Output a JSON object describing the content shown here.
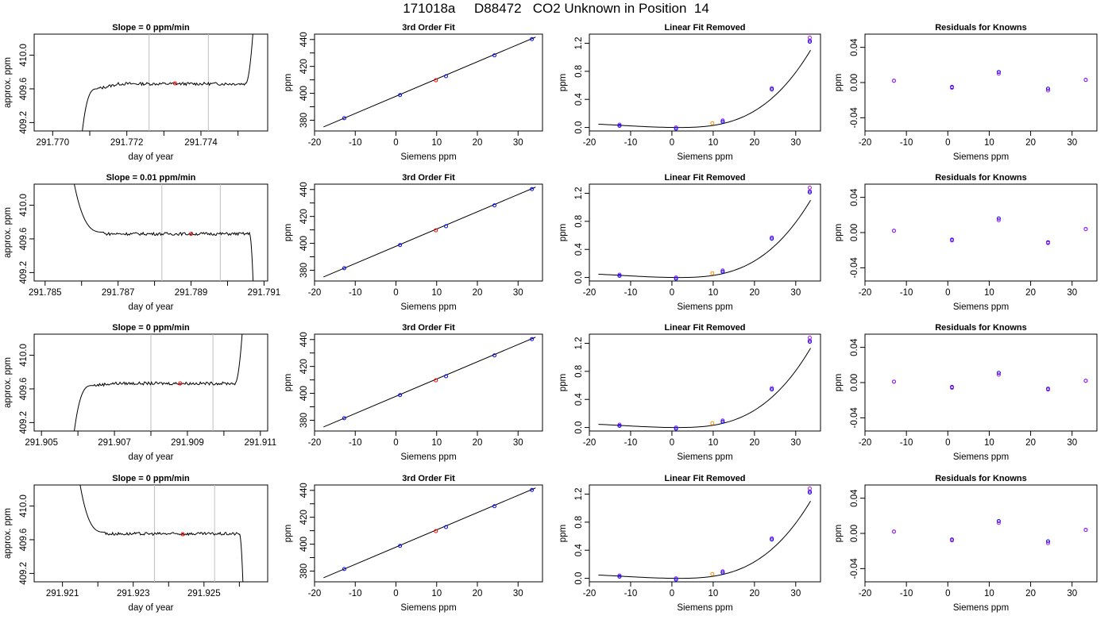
{
  "header": {
    "title": "171018a     D88472   CO2 Unknown in Position  14"
  },
  "colors": {
    "trace": "#000000",
    "window_line": "#bebebe",
    "point_red": "#ff0000",
    "point_blue": "#0000ff",
    "point_purple": "#a020f0",
    "point_orange": "#ff8c00",
    "curve": "#000000"
  },
  "rows": [
    {
      "time_panel": {
        "title": "Slope =  0  ppm/min",
        "xlabel": "day of year",
        "ylabel": "approx. ppm",
        "xlim": [
          291.7695,
          291.7758
        ],
        "ylim": [
          409.1,
          410.25
        ],
        "xticks": [
          291.77,
          291.771,
          291.772,
          291.773,
          291.774,
          291.775
        ],
        "xtick_labels": [
          "291.770",
          "",
          "291.772",
          "",
          "291.774",
          ""
        ],
        "yticks": [
          409.2,
          409.6,
          410.0
        ],
        "ytick_labels": [
          "409.2",
          "409.6",
          "410.0"
        ],
        "window": [
          291.7726,
          291.7742
        ],
        "mean_point": [
          291.7733,
          409.665
        ],
        "trace_start": [
          291.7708,
          409.1
        ],
        "trace_rise_end": [
          291.7712,
          409.6
        ],
        "plateau_level": 409.66,
        "plateau_end": 291.7752,
        "trace_end": [
          291.7754,
          410.25
        ],
        "shape": "rise"
      },
      "fit": {
        "title": "3rd Order Fit",
        "xlabel": "Siemens ppm",
        "ylabel": "ppm"
      },
      "linear": {
        "title": "Linear Fit Removed",
        "xlabel": "Siemens ppm",
        "ylabel": "ppm",
        "curve": {
          "x0": 1.5,
          "a": 0.00088,
          "c": -0.0002
        },
        "knowns": [
          [
            -12.7,
            0.04
          ],
          [
            1.0,
            0.0
          ],
          [
            12.3,
            0.1
          ],
          [
            24.2,
            0.56
          ],
          [
            33.4,
            1.24
          ]
        ],
        "unknown": [
          9.8,
          0.06
        ],
        "ref_point": [
          33.4,
          1.28
        ]
      },
      "resid": {
        "title": "Residuals for Knowns",
        "xlabel": "Siemens ppm",
        "ylabel": "ppm",
        "points": [
          [
            -13,
            0.002,
            0.002
          ],
          [
            1.0,
            -0.005,
            -0.006
          ],
          [
            12.3,
            0.012,
            0.01
          ],
          [
            24.2,
            -0.007,
            -0.009
          ],
          [
            33.3,
            0.003,
            0.003
          ]
        ]
      }
    },
    {
      "time_panel": {
        "title": "Slope =  0.01  ppm/min",
        "xlabel": "day of year",
        "ylabel": "approx. ppm",
        "xlim": [
          291.7847,
          291.7911
        ],
        "ylim": [
          409.1,
          410.25
        ],
        "xticks": [
          291.785,
          291.786,
          291.787,
          291.788,
          291.789,
          291.79,
          291.791
        ],
        "xtick_labels": [
          "291.785",
          "",
          "291.787",
          "",
          "291.789",
          "",
          "291.791"
        ],
        "yticks": [
          409.2,
          409.6,
          410.0
        ],
        "ytick_labels": [
          "409.2",
          "409.6",
          "410.0"
        ],
        "window": [
          291.7882,
          291.7898
        ],
        "mean_point": [
          291.789,
          409.66
        ],
        "trace_start": [
          291.7858,
          410.25
        ],
        "trace_rise_end": [
          291.7866,
          409.68
        ],
        "plateau_level": 409.66,
        "plateau_end": 291.7906,
        "trace_end": [
          291.7907,
          409.1
        ],
        "shape": "fall"
      },
      "fit": {
        "title": "3rd Order Fit",
        "xlabel": "Siemens ppm",
        "ylabel": "ppm"
      },
      "linear": {
        "title": "Linear Fit Removed",
        "xlabel": "Siemens ppm",
        "ylabel": "ppm",
        "curve": {
          "x0": 1.5,
          "a": 0.00088,
          "c": -0.0002
        },
        "knowns": [
          [
            -12.7,
            0.04
          ],
          [
            1.0,
            0.0
          ],
          [
            12.3,
            0.1
          ],
          [
            24.2,
            0.57
          ],
          [
            33.4,
            1.23
          ]
        ],
        "unknown": [
          9.8,
          0.06
        ],
        "ref_point": [
          33.4,
          1.28
        ]
      },
      "resid": {
        "title": "Residuals for Knowns",
        "xlabel": "Siemens ppm",
        "ylabel": "ppm",
        "points": [
          [
            -13,
            0.002,
            0.002
          ],
          [
            1.0,
            -0.008,
            -0.009
          ],
          [
            12.3,
            0.016,
            0.014
          ],
          [
            24.2,
            -0.011,
            -0.012
          ],
          [
            33.3,
            0.004,
            0.004
          ]
        ]
      }
    },
    {
      "time_panel": {
        "title": "Slope =  0  ppm/min",
        "xlabel": "day of year",
        "ylabel": "approx. ppm",
        "xlim": [
          291.9048,
          291.9112
        ],
        "ylim": [
          409.1,
          410.25
        ],
        "xticks": [
          291.905,
          291.906,
          291.907,
          291.908,
          291.909,
          291.91,
          291.911
        ],
        "xtick_labels": [
          "291.905",
          "",
          "291.907",
          "",
          "291.909",
          "",
          "291.911"
        ],
        "yticks": [
          409.2,
          409.6,
          410.0
        ],
        "ytick_labels": [
          "409.2",
          "409.6",
          "410.0"
        ],
        "window": [
          291.908,
          291.9097
        ],
        "mean_point": [
          291.9088,
          409.665
        ],
        "trace_start": [
          291.9059,
          409.1
        ],
        "trace_rise_end": [
          291.9064,
          409.64
        ],
        "plateau_level": 409.665,
        "plateau_end": 291.9103,
        "trace_end": [
          291.9105,
          410.25
        ],
        "shape": "rise"
      },
      "fit": {
        "title": "3rd Order Fit",
        "xlabel": "Siemens ppm",
        "ylabel": "ppm"
      },
      "linear": {
        "title": "Linear Fit Removed",
        "xlabel": "Siemens ppm",
        "ylabel": "ppm",
        "curve": {
          "x0": 1.2,
          "a": 0.00088,
          "c": -0.0003
        },
        "knowns": [
          [
            -12.7,
            0.04
          ],
          [
            1.0,
            0.0
          ],
          [
            12.3,
            0.1
          ],
          [
            24.2,
            0.56
          ],
          [
            33.4,
            1.24
          ]
        ],
        "unknown": [
          9.8,
          0.06
        ],
        "ref_point": [
          33.4,
          1.28
        ]
      },
      "resid": {
        "title": "Residuals for Knowns",
        "xlabel": "Siemens ppm",
        "ylabel": "ppm",
        "points": [
          [
            -13,
            0.001,
            0.001
          ],
          [
            1.0,
            -0.005,
            -0.006
          ],
          [
            12.3,
            0.011,
            0.009
          ],
          [
            24.2,
            -0.007,
            -0.008
          ],
          [
            33.3,
            0.002,
            0.002
          ]
        ]
      }
    },
    {
      "time_panel": {
        "title": "Slope =  0  ppm/min",
        "xlabel": "day of year",
        "ylabel": "approx. ppm",
        "xlim": [
          291.9202,
          291.9268
        ],
        "ylim": [
          409.1,
          410.25
        ],
        "xticks": [
          291.921,
          291.922,
          291.923,
          291.924,
          291.925,
          291.926
        ],
        "xtick_labels": [
          "291.921",
          "",
          "291.923",
          "",
          "291.925",
          ""
        ],
        "yticks": [
          409.2,
          409.6,
          410.0
        ],
        "ytick_labels": [
          "409.2",
          "409.6",
          "410.0"
        ],
        "window": [
          291.9236,
          291.9253
        ],
        "mean_point": [
          291.9244,
          409.665
        ],
        "trace_start": [
          291.9215,
          410.25
        ],
        "trace_rise_end": [
          291.9222,
          409.69
        ],
        "plateau_level": 409.67,
        "plateau_end": 291.926,
        "trace_end": [
          291.9261,
          409.1
        ],
        "shape": "fall"
      },
      "fit": {
        "title": "3rd Order Fit",
        "xlabel": "Siemens ppm",
        "ylabel": "ppm"
      },
      "linear": {
        "title": "Linear Fit Removed",
        "xlabel": "Siemens ppm",
        "ylabel": "ppm",
        "curve": {
          "x0": 1.5,
          "a": 0.00088,
          "c": -0.0002
        },
        "knowns": [
          [
            -12.7,
            0.04
          ],
          [
            1.0,
            0.0
          ],
          [
            12.3,
            0.1
          ],
          [
            24.2,
            0.57
          ],
          [
            33.4,
            1.24
          ]
        ],
        "unknown": [
          9.8,
          0.06
        ],
        "ref_point": [
          33.4,
          1.28
        ]
      },
      "resid": {
        "title": "Residuals for Knowns",
        "xlabel": "Siemens ppm",
        "ylabel": "ppm",
        "points": [
          [
            -13,
            0.002,
            0.002
          ],
          [
            1.0,
            -0.007,
            -0.008
          ],
          [
            12.3,
            0.014,
            0.012
          ],
          [
            24.2,
            -0.009,
            -0.011
          ],
          [
            33.3,
            0.004,
            0.004
          ]
        ]
      }
    }
  ],
  "shared": {
    "fit_xlim": [
      -20,
      36
    ],
    "fit_ylim": [
      372,
      444
    ],
    "fit_xticks": [
      -20,
      -10,
      0,
      10,
      20,
      30
    ],
    "fit_xtick_labels": [
      "-20",
      "-10",
      "0",
      "10",
      "20",
      "30"
    ],
    "fit_yticks": [
      380,
      400,
      420,
      440
    ],
    "fit_yticks_minor": [
      390,
      410,
      430
    ],
    "fit_ytick_labels": [
      "380",
      "400",
      "420",
      "440"
    ],
    "fit_knowns": [
      [
        -12.7,
        381.5
      ],
      [
        1.0,
        398.7
      ],
      [
        12.3,
        412.7
      ],
      [
        24.2,
        428.2
      ],
      [
        33.4,
        440.3
      ]
    ],
    "fit_unknown": [
      9.8,
      409.7
    ],
    "fit_line": [
      [
        -17.8,
        375.0
      ],
      [
        34.3,
        441.8
      ]
    ],
    "lin_xlim": [
      -20,
      36
    ],
    "lin_ylim": [
      -0.05,
      1.33
    ],
    "lin_xticks": [
      -20,
      -10,
      0,
      10,
      20,
      30
    ],
    "lin_xtick_labels": [
      "-20",
      "-10",
      "0",
      "10",
      "20",
      "30"
    ],
    "lin_yticks": [
      0.0,
      0.4,
      0.8,
      1.2
    ],
    "lin_ytick_labels": [
      "0.0",
      "0.4",
      "0.8",
      "1.2"
    ],
    "lin_curve_range": [
      -17.8,
      33.6
    ],
    "res_xlim": [
      -20,
      36
    ],
    "res_ylim": [
      -0.055,
      0.055
    ],
    "res_xticks": [
      -20,
      -10,
      0,
      10,
      20,
      30
    ],
    "res_xtick_labels": [
      "-20",
      "-10",
      "0",
      "10",
      "20",
      "30"
    ],
    "res_yticks": [
      -0.04,
      0.0,
      0.04
    ],
    "res_ytick_labels": [
      "-0.04",
      "0.00",
      "0.04"
    ]
  },
  "chart_data": [
    {
      "type": "line",
      "title": "Slope =  0  ppm/min",
      "xlabel": "day of year",
      "ylabel": "approx. ppm",
      "xlim": [
        291.7695,
        291.7758
      ],
      "ylim": [
        409.1,
        410.25
      ],
      "series": [
        {
          "x": [
            291.7708,
            291.7712,
            291.7726,
            291.7742,
            291.7752,
            291.7754
          ],
          "values": [
            409.1,
            409.6,
            409.66,
            409.67,
            409.7,
            410.25
          ]
        }
      ]
    },
    {
      "type": "scatter",
      "title": "3rd Order Fit",
      "xlabel": "Siemens ppm",
      "ylabel": "ppm",
      "xlim": [
        -20,
        36
      ],
      "ylim": [
        372,
        444
      ],
      "series": [
        {
          "x": [
            -12.7,
            1.0,
            12.3,
            24.2,
            33.4
          ],
          "values": [
            381.5,
            398.7,
            412.7,
            428.2,
            440.3
          ]
        },
        {
          "x": [
            9.8
          ],
          "values": [
            409.7
          ]
        }
      ]
    },
    {
      "type": "scatter",
      "title": "Linear Fit Removed",
      "xlabel": "Siemens ppm",
      "ylabel": "ppm",
      "xlim": [
        -20,
        36
      ],
      "ylim": [
        -0.05,
        1.33
      ],
      "series": [
        {
          "x": [
            -12.7,
            1.0,
            12.3,
            24.2,
            33.4
          ],
          "values": [
            0.04,
            0.0,
            0.1,
            0.56,
            1.24
          ]
        },
        {
          "x": [
            9.8
          ],
          "values": [
            0.06
          ]
        }
      ]
    },
    {
      "type": "scatter",
      "title": "Residuals for Knowns",
      "xlabel": "Siemens ppm",
      "ylabel": "ppm",
      "xlim": [
        -20,
        36
      ],
      "ylim": [
        -0.055,
        0.055
      ],
      "series": [
        {
          "x": [
            -13,
            1.0,
            12.3,
            24.2,
            33.3
          ],
          "values": [
            0.002,
            -0.005,
            0.012,
            -0.007,
            0.003
          ]
        }
      ]
    },
    {
      "type": "line",
      "title": "Slope =  0.01  ppm/min",
      "xlabel": "day of year",
      "ylabel": "approx. ppm",
      "xlim": [
        291.7847,
        291.7911
      ],
      "ylim": [
        409.1,
        410.25
      ],
      "series": [
        {
          "x": [
            291.7858,
            291.7866,
            291.7882,
            291.7898,
            291.7906,
            291.7907
          ],
          "values": [
            410.25,
            409.68,
            409.66,
            409.66,
            409.66,
            409.1
          ]
        }
      ]
    },
    {
      "type": "line",
      "title": "Slope =  0  ppm/min",
      "xlabel": "day of year",
      "ylabel": "approx. ppm",
      "xlim": [
        291.9048,
        291.9112
      ],
      "ylim": [
        409.1,
        410.25
      ],
      "series": [
        {
          "x": [
            291.9059,
            291.9064,
            291.908,
            291.9097,
            291.9103,
            291.9105
          ],
          "values": [
            409.1,
            409.64,
            409.665,
            409.67,
            409.7,
            410.25
          ]
        }
      ]
    },
    {
      "type": "line",
      "title": "Slope =  0  ppm/min",
      "xlabel": "day of year",
      "ylabel": "approx. ppm",
      "xlim": [
        291.9202,
        291.9268
      ],
      "ylim": [
        409.1,
        410.25
      ],
      "series": [
        {
          "x": [
            291.9215,
            291.9222,
            291.9236,
            291.9253,
            291.926,
            291.9261
          ],
          "values": [
            410.25,
            409.69,
            409.67,
            409.67,
            409.67,
            409.1
          ]
        }
      ]
    }
  ]
}
